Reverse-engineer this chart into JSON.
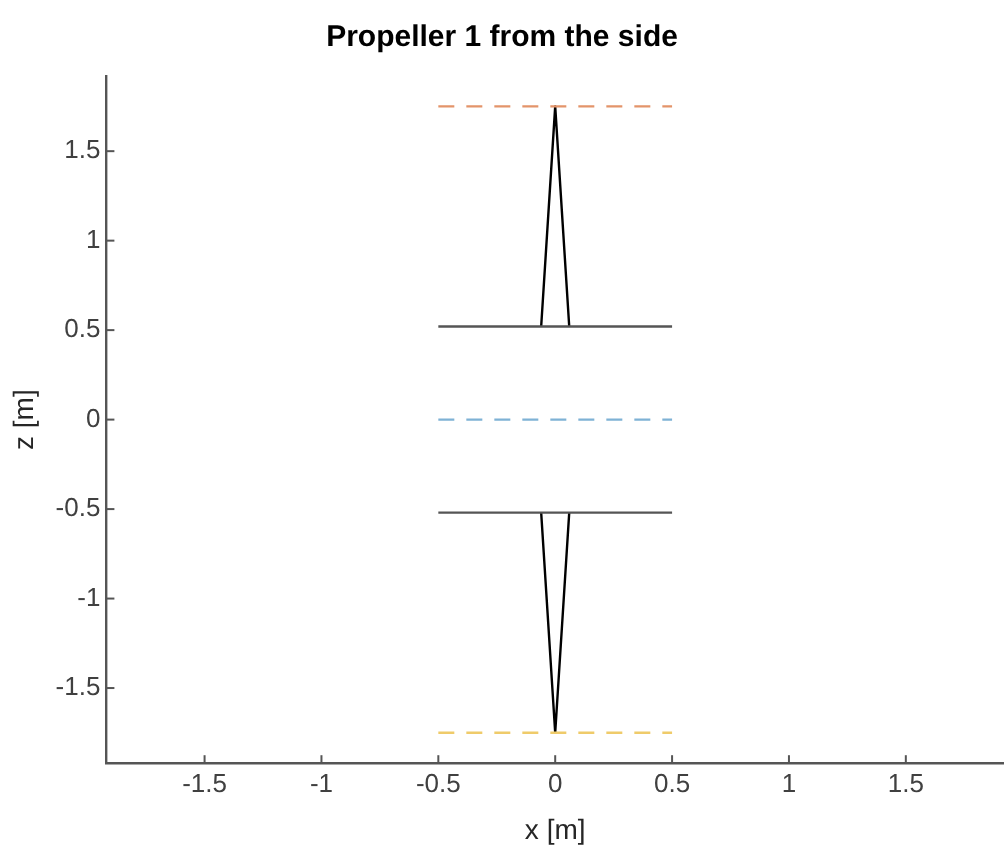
{
  "chart_data": {
    "type": "line",
    "title": "Propeller 1 from the side",
    "xlabel": "x [m]",
    "ylabel": "z [m]",
    "xlim": [
      -1.92,
      1.92
    ],
    "ylim": [
      -1.92,
      1.92
    ],
    "xticks": [
      -1.5,
      -1,
      -0.5,
      0,
      0.5,
      1,
      1.5
    ],
    "yticks": [
      -1.5,
      -1,
      -0.5,
      0,
      0.5,
      1,
      1.5
    ],
    "grid": false,
    "legend": false,
    "marker": "none",
    "series": [
      {
        "x": [
          -0.5,
          0.5
        ],
        "values": [
          1.75,
          1.75
        ],
        "color": "#e3946a",
        "line_style": "dashed"
      },
      {
        "x": [
          -0.5,
          0.5
        ],
        "values": [
          0,
          0
        ],
        "color": "#7fb2d5",
        "line_style": "dashed"
      },
      {
        "x": [
          -0.5,
          0.5
        ],
        "values": [
          -1.75,
          -1.75
        ],
        "color": "#efcb6a",
        "line_style": "dashed"
      },
      {
        "x": [
          -0.5,
          0.5
        ],
        "values": [
          0.52,
          0.52
        ],
        "color": "#555555",
        "line_style": "solid"
      },
      {
        "x": [
          -0.06,
          0,
          0.06
        ],
        "values": [
          0.52,
          1.75,
          0.52
        ],
        "color": "#000000",
        "line_style": "solid"
      },
      {
        "x": [
          -0.5,
          0.5
        ],
        "values": [
          -0.52,
          -0.52
        ],
        "color": "#555555",
        "line_style": "solid"
      },
      {
        "x": [
          -0.06,
          0,
          0.06
        ],
        "values": [
          -0.52,
          -1.75,
          -0.52
        ],
        "color": "#000000",
        "line_style": "solid"
      }
    ]
  }
}
